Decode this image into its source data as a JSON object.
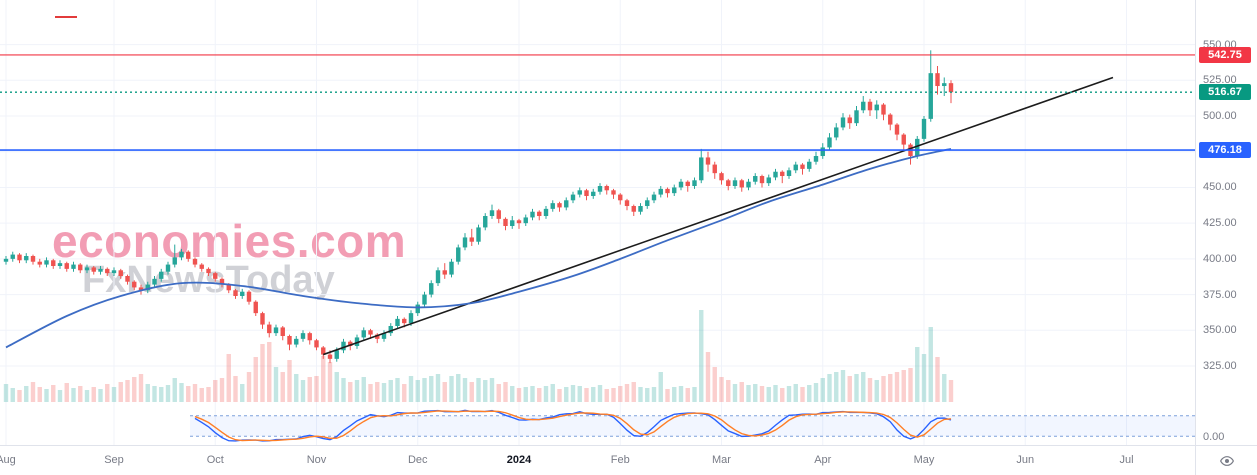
{
  "watermark": {
    "line1": "economies.com",
    "line2": "FxNewsToday"
  },
  "colors": {
    "up": "#26a69a",
    "down": "#ef5350",
    "vol_up": "rgba(38,166,154,0.28)",
    "vol_down": "rgba(239,83,80,0.28)",
    "ma": "#3d6cc4",
    "trend": "#1c1c1c",
    "grid": "#f0f3fa",
    "axis_text": "#787b86",
    "osc_k": "#2962ff",
    "osc_d": "#ff7f27",
    "band_line": "#7da0dc",
    "band_fill": "rgba(41,98,255,0.06)"
  },
  "price_scale": {
    "ticks": [
      {
        "label": "550.00",
        "value": 550
      },
      {
        "label": "525.00",
        "value": 525
      },
      {
        "label": "500.00",
        "value": 500
      },
      {
        "label": "475.00",
        "value": 475
      },
      {
        "label": "450.00",
        "value": 450
      },
      {
        "label": "425.00",
        "value": 425
      },
      {
        "label": "400.00",
        "value": 400
      },
      {
        "label": "375.00",
        "value": 375
      },
      {
        "label": "350.00",
        "value": 350
      },
      {
        "label": "325.00",
        "value": 325
      }
    ],
    "extra_ticks": [
      {
        "label": "0.00",
        "y": 437
      }
    ],
    "badges": [
      {
        "label": "542.75",
        "value": 542.75,
        "color": "#f23645",
        "name": "resistance-price-badge"
      },
      {
        "label": "516.67",
        "value": 516.67,
        "color": "#089981",
        "name": "current-price-badge"
      },
      {
        "label": "476.18",
        "value": 476.18,
        "color": "#2962ff",
        "name": "support-price-badge"
      }
    ]
  },
  "chart_data": {
    "type": "candlestick",
    "title": "",
    "xlabel": "",
    "ylabel": "",
    "ylim": [
      270,
      580
    ],
    "y_ticks": [
      550,
      525,
      500,
      475,
      450,
      425,
      400,
      375,
      350,
      325
    ],
    "months": [
      {
        "label": "Aug",
        "index": 0
      },
      {
        "label": "Sep",
        "index": 16
      },
      {
        "label": "Oct",
        "index": 31
      },
      {
        "label": "Nov",
        "index": 46
      },
      {
        "label": "Dec",
        "index": 61
      },
      {
        "label": "2024",
        "index": 76,
        "year": true
      },
      {
        "label": "Feb",
        "index": 91
      },
      {
        "label": "Mar",
        "index": 106
      },
      {
        "label": "Apr",
        "index": 121
      },
      {
        "label": "May",
        "index": 136
      },
      {
        "label": "Jun",
        "index": 151
      },
      {
        "label": "Jul",
        "index": 166
      }
    ],
    "price_lines": [
      {
        "name": "resistance-line",
        "value": 542.75,
        "color": "#f23645",
        "style": "solid",
        "width": 1.2
      },
      {
        "name": "current-price-line",
        "value": 516.67,
        "color": "#089981",
        "style": "dotted",
        "width": 1.4
      },
      {
        "name": "support-line",
        "value": 476.18,
        "color": "#2962ff",
        "style": "solid",
        "width": 1.6
      }
    ],
    "trend_line": {
      "start": {
        "index": 47,
        "price": 333
      },
      "end": {
        "index": 164,
        "price": 527
      }
    },
    "moving_average": [
      [
        0,
        338
      ],
      [
        9,
        360
      ],
      [
        17,
        374
      ],
      [
        26,
        383
      ],
      [
        35,
        381
      ],
      [
        44,
        374
      ],
      [
        52,
        369
      ],
      [
        61,
        366
      ],
      [
        69,
        369
      ],
      [
        76,
        377
      ],
      [
        84,
        388
      ],
      [
        91,
        400
      ],
      [
        98,
        413
      ],
      [
        106,
        427
      ],
      [
        113,
        440
      ],
      [
        121,
        452
      ],
      [
        128,
        463
      ],
      [
        135,
        472
      ],
      [
        140,
        477
      ]
    ],
    "oscillator": {
      "type": "stochastic",
      "period": 9,
      "smooth": 3,
      "band": [
        20,
        80
      ]
    },
    "candles": [
      [
        398,
        402,
        396,
        400,
        18
      ],
      [
        400,
        405,
        398,
        403,
        14
      ],
      [
        403,
        404,
        397,
        399,
        12
      ],
      [
        399,
        404,
        397,
        402,
        16
      ],
      [
        402,
        403,
        396,
        398,
        20
      ],
      [
        398,
        400,
        394,
        396,
        15
      ],
      [
        396,
        401,
        394,
        399,
        13
      ],
      [
        399,
        400,
        393,
        395,
        17
      ],
      [
        395,
        399,
        393,
        397,
        12
      ],
      [
        397,
        398,
        391,
        393,
        19
      ],
      [
        393,
        398,
        391,
        396,
        14
      ],
      [
        396,
        397,
        390,
        392,
        16
      ],
      [
        392,
        396,
        390,
        394,
        12
      ],
      [
        394,
        395,
        389,
        391,
        15
      ],
      [
        391,
        395,
        389,
        393,
        13
      ],
      [
        393,
        394,
        388,
        390,
        18
      ],
      [
        390,
        394,
        388,
        392,
        15
      ],
      [
        392,
        393,
        386,
        388,
        20
      ],
      [
        388,
        389,
        382,
        384,
        22
      ],
      [
        384,
        385,
        378,
        380,
        25
      ],
      [
        380,
        382,
        375,
        378,
        28
      ],
      [
        378,
        384,
        376,
        382,
        18
      ],
      [
        382,
        388,
        380,
        386,
        16
      ],
      [
        386,
        393,
        384,
        391,
        15
      ],
      [
        391,
        398,
        389,
        396,
        17
      ],
      [
        396,
        410,
        394,
        401,
        24
      ],
      [
        401,
        407,
        399,
        405,
        19
      ],
      [
        405,
        406,
        398,
        400,
        16
      ],
      [
        400,
        401,
        394,
        396,
        18
      ],
      [
        396,
        397,
        391,
        393,
        14
      ],
      [
        393,
        394,
        388,
        390,
        15
      ],
      [
        390,
        391,
        384,
        386,
        22
      ],
      [
        386,
        387,
        380,
        382,
        24
      ],
      [
        382,
        383,
        376,
        378,
        48
      ],
      [
        378,
        379,
        372,
        374,
        26
      ],
      [
        374,
        379,
        372,
        377,
        18
      ],
      [
        377,
        378,
        368,
        370,
        30
      ],
      [
        370,
        371,
        360,
        362,
        45
      ],
      [
        362,
        363,
        351,
        354,
        58
      ],
      [
        354,
        356,
        345,
        348,
        60
      ],
      [
        348,
        354,
        346,
        352,
        35
      ],
      [
        352,
        353,
        343,
        346,
        30
      ],
      [
        346,
        347,
        336,
        340,
        42
      ],
      [
        340,
        346,
        338,
        344,
        28
      ],
      [
        344,
        350,
        342,
        348,
        22
      ],
      [
        348,
        349,
        340,
        343,
        25
      ],
      [
        343,
        344,
        336,
        338,
        26
      ],
      [
        338,
        339,
        330,
        333,
        46
      ],
      [
        333,
        336,
        327,
        330,
        40
      ],
      [
        330,
        338,
        328,
        336,
        30
      ],
      [
        336,
        344,
        334,
        342,
        24
      ],
      [
        342,
        343,
        336,
        339,
        20
      ],
      [
        339,
        347,
        337,
        345,
        22
      ],
      [
        345,
        352,
        343,
        350,
        25
      ],
      [
        350,
        351,
        344,
        347,
        18
      ],
      [
        347,
        348,
        341,
        344,
        20
      ],
      [
        344,
        350,
        342,
        348,
        19
      ],
      [
        348,
        355,
        346,
        353,
        22
      ],
      [
        353,
        360,
        351,
        358,
        24
      ],
      [
        358,
        359,
        352,
        355,
        18
      ],
      [
        355,
        364,
        353,
        362,
        26
      ],
      [
        362,
        370,
        360,
        368,
        22
      ],
      [
        368,
        377,
        366,
        375,
        24
      ],
      [
        375,
        385,
        373,
        383,
        26
      ],
      [
        383,
        394,
        381,
        392,
        28
      ],
      [
        392,
        397,
        386,
        389,
        20
      ],
      [
        389,
        400,
        387,
        398,
        26
      ],
      [
        398,
        410,
        396,
        408,
        28
      ],
      [
        408,
        418,
        406,
        415,
        24
      ],
      [
        415,
        421,
        409,
        412,
        20
      ],
      [
        412,
        424,
        410,
        422,
        24
      ],
      [
        422,
        432,
        420,
        430,
        22
      ],
      [
        430,
        438,
        428,
        434,
        24
      ],
      [
        434,
        435,
        425,
        428,
        18
      ],
      [
        428,
        429,
        420,
        423,
        20
      ],
      [
        423,
        430,
        421,
        427,
        16
      ],
      [
        427,
        428,
        421,
        425,
        14
      ],
      [
        425,
        431,
        423,
        429,
        15
      ],
      [
        429,
        435,
        427,
        433,
        16
      ],
      [
        433,
        434,
        427,
        430,
        14
      ],
      [
        430,
        437,
        428,
        435,
        16
      ],
      [
        435,
        441,
        433,
        439,
        18
      ],
      [
        439,
        440,
        433,
        436,
        13
      ],
      [
        436,
        443,
        434,
        441,
        15
      ],
      [
        441,
        447,
        439,
        445,
        17
      ],
      [
        445,
        450,
        443,
        448,
        16
      ],
      [
        448,
        449,
        441,
        444,
        14
      ],
      [
        444,
        449,
        442,
        447,
        15
      ],
      [
        447,
        453,
        445,
        451,
        17
      ],
      [
        451,
        452,
        445,
        448,
        13
      ],
      [
        448,
        449,
        442,
        445,
        14
      ],
      [
        445,
        446,
        438,
        441,
        16
      ],
      [
        441,
        442,
        434,
        437,
        18
      ],
      [
        437,
        438,
        430,
        433,
        20
      ],
      [
        433,
        439,
        431,
        437,
        15
      ],
      [
        437,
        443,
        435,
        441,
        14
      ],
      [
        441,
        447,
        439,
        445,
        15
      ],
      [
        445,
        451,
        443,
        449,
        30
      ],
      [
        449,
        450,
        443,
        446,
        13
      ],
      [
        446,
        452,
        444,
        450,
        15
      ],
      [
        450,
        456,
        448,
        454,
        16
      ],
      [
        454,
        455,
        447,
        451,
        14
      ],
      [
        451,
        457,
        449,
        455,
        15
      ],
      [
        455,
        477,
        453,
        471,
        92
      ],
      [
        471,
        475,
        461,
        466,
        50
      ],
      [
        466,
        468,
        456,
        460,
        35
      ],
      [
        460,
        461,
        452,
        455,
        25
      ],
      [
        455,
        456,
        448,
        451,
        22
      ],
      [
        451,
        457,
        449,
        455,
        18
      ],
      [
        455,
        456,
        447,
        450,
        20
      ],
      [
        450,
        456,
        448,
        454,
        17
      ],
      [
        454,
        460,
        452,
        458,
        18
      ],
      [
        458,
        459,
        450,
        453,
        16
      ],
      [
        453,
        459,
        451,
        457,
        15
      ],
      [
        457,
        463,
        455,
        461,
        17
      ],
      [
        461,
        462,
        453,
        458,
        14
      ],
      [
        458,
        464,
        456,
        462,
        16
      ],
      [
        462,
        468,
        460,
        466,
        18
      ],
      [
        466,
        467,
        459,
        463,
        15
      ],
      [
        463,
        470,
        461,
        468,
        17
      ],
      [
        468,
        475,
        466,
        472,
        19
      ],
      [
        472,
        481,
        470,
        478,
        24
      ],
      [
        478,
        488,
        476,
        485,
        28
      ],
      [
        485,
        495,
        483,
        492,
        30
      ],
      [
        492,
        502,
        490,
        499,
        32
      ],
      [
        499,
        501,
        491,
        495,
        26
      ],
      [
        495,
        507,
        493,
        504,
        28
      ],
      [
        504,
        514,
        502,
        510,
        30
      ],
      [
        510,
        512,
        500,
        504,
        24
      ],
      [
        504,
        511,
        498,
        508,
        22
      ],
      [
        508,
        509,
        497,
        501,
        26
      ],
      [
        501,
        502,
        490,
        494,
        28
      ],
      [
        494,
        495,
        483,
        487,
        30
      ],
      [
        487,
        488,
        476,
        480,
        32
      ],
      [
        480,
        481,
        466,
        472,
        34
      ],
      [
        472,
        486,
        470,
        484,
        55
      ],
      [
        484,
        500,
        482,
        498,
        48
      ],
      [
        498,
        546,
        496,
        530,
        75
      ],
      [
        530,
        535,
        515,
        521,
        45
      ],
      [
        521,
        527,
        514,
        523,
        28
      ],
      [
        523,
        525,
        509,
        516.67,
        22
      ]
    ]
  }
}
